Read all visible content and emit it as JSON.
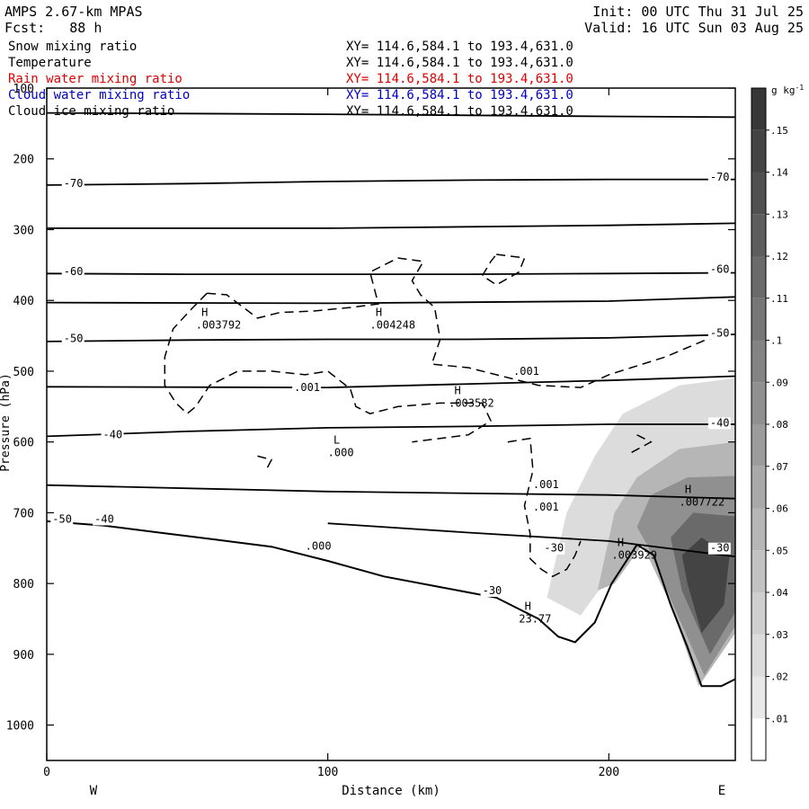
{
  "header": {
    "model": "AMPS 2.67-km MPAS",
    "fcst_label": "Fcst:",
    "fcst_value": "88 h",
    "init": "Init: 00 UTC Thu 31 Jul 25",
    "valid": "Valid: 16 UTC Sun 03 Aug 25"
  },
  "legend": [
    {
      "name": "Snow mixing ratio",
      "xy": "XY= 114.6,584.1 to 193.4,631.0",
      "color": "#000000"
    },
    {
      "name": "Temperature",
      "xy": "XY= 114.6,584.1 to 193.4,631.0",
      "color": "#000000"
    },
    {
      "name": "Rain water mixing ratio",
      "xy": "XY= 114.6,584.1 to 193.4,631.0",
      "color": "#e00000"
    },
    {
      "name": "Cloud water mixing ratio",
      "xy": "XY= 114.6,584.1 to 193.4,631.0",
      "color": "#0000cc"
    },
    {
      "name": "Cloud ice mixing ratio",
      "xy": "XY= 114.6,584.1 to 193.4,631.0",
      "color": "#000000"
    }
  ],
  "chart_data": {
    "type": "contour cross-section",
    "xlabel": "Distance (km)",
    "ylabel": "Pressure (hPa)",
    "xlim": [
      0,
      245
    ],
    "ylim": [
      1050,
      100
    ],
    "x_ticks": [
      0,
      100,
      200
    ],
    "y_ticks": [
      100,
      200,
      300,
      400,
      500,
      600,
      700,
      800,
      900,
      1000
    ],
    "x_end_labels": {
      "left": "W",
      "right": "E"
    },
    "colorbar": {
      "unit": "g kg",
      "unit_exp": "-1",
      "labels": [
        ".01",
        ".02",
        ".03",
        ".04",
        ".05",
        ".06",
        ".07",
        ".08",
        ".09",
        ".1",
        ".11",
        ".12",
        ".13",
        ".14",
        ".15"
      ],
      "levels": [
        0.01,
        0.02,
        0.03,
        0.04,
        0.05,
        0.06,
        0.07,
        0.08,
        0.09,
        0.1,
        0.11,
        0.12,
        0.13,
        0.14,
        0.15
      ]
    },
    "temperature_isotherms": [
      {
        "label": "-70",
        "points": [
          [
            0,
            237
          ],
          [
            50,
            235
          ],
          [
            100,
            232
          ],
          [
            150,
            230
          ],
          [
            200,
            229
          ],
          [
            245,
            229
          ]
        ]
      },
      {
        "label": "-60",
        "points": [
          [
            0,
            362
          ],
          [
            50,
            363
          ],
          [
            100,
            363
          ],
          [
            150,
            363
          ],
          [
            200,
            362
          ],
          [
            245,
            361
          ]
        ]
      },
      {
        "label": "-50",
        "points": [
          [
            0,
            458
          ],
          [
            50,
            456
          ],
          [
            100,
            455
          ],
          [
            150,
            455
          ],
          [
            200,
            453
          ],
          [
            245,
            448
          ]
        ]
      },
      {
        "label": "-40",
        "points": [
          [
            0,
            592
          ],
          [
            50,
            585
          ],
          [
            100,
            580
          ],
          [
            150,
            578
          ],
          [
            200,
            575
          ],
          [
            245,
            575
          ]
        ]
      },
      {
        "label": "-30",
        "points": [
          [
            100,
            715
          ],
          [
            150,
            728
          ],
          [
            200,
            740
          ],
          [
            245,
            762
          ]
        ]
      },
      {
        "label": "",
        "points": [
          [
            0,
            135
          ],
          [
            100,
            137
          ],
          [
            200,
            140
          ],
          [
            245,
            141
          ]
        ]
      },
      {
        "label": "",
        "points": [
          [
            0,
            298
          ],
          [
            100,
            298
          ],
          [
            200,
            294
          ],
          [
            245,
            291
          ]
        ]
      },
      {
        "label": "",
        "points": [
          [
            0,
            403
          ],
          [
            100,
            404
          ],
          [
            200,
            401
          ],
          [
            245,
            395
          ]
        ]
      },
      {
        "label": "",
        "points": [
          [
            0,
            522
          ],
          [
            100,
            523
          ],
          [
            200,
            513
          ],
          [
            245,
            507
          ]
        ]
      },
      {
        "label": "",
        "points": [
          [
            0,
            661
          ],
          [
            100,
            670
          ],
          [
            200,
            675
          ],
          [
            245,
            680
          ]
        ]
      }
    ],
    "inline_labels": [
      {
        "text": "-70",
        "x": 6,
        "p": 240
      },
      {
        "text": "-70",
        "x": 236,
        "p": 231
      },
      {
        "text": "-60",
        "x": 6,
        "p": 364
      },
      {
        "text": "-60",
        "x": 236,
        "p": 361
      },
      {
        "text": "-50",
        "x": 6,
        "p": 459
      },
      {
        "text": "-50",
        "x": 236,
        "p": 451
      },
      {
        "text": "-40",
        "x": 20,
        "p": 595
      },
      {
        "text": "-40",
        "x": 236,
        "p": 578
      },
      {
        "text": "-30",
        "x": 177,
        "p": 755
      },
      {
        "text": "-30",
        "x": 236,
        "p": 755
      },
      {
        "text": "-30",
        "x": 155,
        "p": 815
      },
      {
        "text": "-50",
        "x": 2,
        "p": 714
      },
      {
        "text": "-40",
        "x": 17,
        "p": 714
      },
      {
        "text": ".000",
        "x": 92,
        "p": 752
      },
      {
        "text": ".001",
        "x": 88,
        "p": 528
      },
      {
        "text": ".001",
        "x": 166,
        "p": 505
      },
      {
        "text": ".001",
        "x": 173,
        "p": 665
      },
      {
        "text": ".001",
        "x": 173,
        "p": 697
      }
    ],
    "extrema": [
      {
        "type": "H",
        "value": ".003792",
        "x": 53,
        "p": 440
      },
      {
        "type": "H",
        "value": ".004248",
        "x": 115,
        "p": 440
      },
      {
        "type": "H",
        "value": ".003582",
        "x": 143,
        "p": 550
      },
      {
        "type": "L",
        "value": ".000",
        "x": 100,
        "p": 620
      },
      {
        "type": "H",
        "value": ".007722",
        "x": 225,
        "p": 690
      },
      {
        "type": "H",
        "value": ".003929",
        "x": 201,
        "p": 765
      },
      {
        "type": "H",
        "value": "23.77",
        "x": 168,
        "p": 855
      }
    ],
    "terrain_outline": [
      [
        0,
        712
      ],
      [
        20,
        718
      ],
      [
        40,
        728
      ],
      [
        60,
        738
      ],
      [
        80,
        748
      ],
      [
        100,
        768
      ],
      [
        120,
        790
      ],
      [
        140,
        805
      ],
      [
        160,
        820
      ],
      [
        175,
        850
      ],
      [
        182,
        875
      ],
      [
        188,
        883
      ],
      [
        195,
        855
      ],
      [
        201,
        800
      ],
      [
        210,
        745
      ],
      [
        216,
        760
      ],
      [
        222,
        830
      ],
      [
        228,
        890
      ],
      [
        233,
        945
      ],
      [
        240,
        945
      ],
      [
        245,
        935
      ]
    ],
    "snow_shading": [
      {
        "level": 0.02,
        "points": [
          [
            178,
            820
          ],
          [
            185,
            700
          ],
          [
            195,
            620
          ],
          [
            205,
            560
          ],
          [
            225,
            520
          ],
          [
            245,
            510
          ],
          [
            245,
            870
          ],
          [
            232,
            945
          ],
          [
            222,
            830
          ],
          [
            212,
            745
          ],
          [
            200,
            790
          ],
          [
            190,
            845
          ]
        ]
      },
      {
        "level": 0.05,
        "points": [
          [
            196,
            810
          ],
          [
            202,
            700
          ],
          [
            210,
            650
          ],
          [
            225,
            610
          ],
          [
            245,
            600
          ],
          [
            245,
            870
          ],
          [
            232,
            945
          ],
          [
            222,
            830
          ],
          [
            212,
            745
          ],
          [
            202,
            800
          ]
        ]
      },
      {
        "level": 0.08,
        "points": [
          [
            210,
            720
          ],
          [
            215,
            675
          ],
          [
            228,
            650
          ],
          [
            245,
            648
          ],
          [
            245,
            860
          ],
          [
            234,
            930
          ],
          [
            224,
            840
          ],
          [
            214,
            748
          ]
        ]
      },
      {
        "level": 0.11,
        "points": [
          [
            222,
            735
          ],
          [
            230,
            700
          ],
          [
            245,
            705
          ],
          [
            245,
            840
          ],
          [
            236,
            900
          ],
          [
            226,
            810
          ]
        ]
      },
      {
        "level": 0.14,
        "points": [
          [
            226,
            760
          ],
          [
            233,
            735
          ],
          [
            243,
            760
          ],
          [
            241,
            830
          ],
          [
            233,
            870
          ],
          [
            228,
            800
          ]
        ]
      }
    ],
    "cloud_ice_dashed_contours": [
      {
        "level": 0.001,
        "points": [
          [
            57,
            390
          ],
          [
            64,
            392
          ],
          [
            70,
            410
          ],
          [
            75,
            425
          ],
          [
            83,
            417
          ],
          [
            95,
            415
          ],
          [
            108,
            410
          ],
          [
            118,
            405
          ],
          [
            115,
            360
          ],
          [
            125,
            340
          ],
          [
            134,
            345
          ],
          [
            130,
            372
          ],
          [
            133,
            392
          ],
          [
            138,
            410
          ],
          [
            140,
            455
          ],
          [
            137,
            490
          ],
          [
            150,
            495
          ],
          [
            160,
            505
          ],
          [
            175,
            520
          ],
          [
            190,
            523
          ],
          [
            200,
            505
          ],
          [
            208,
            495
          ],
          [
            220,
            480
          ],
          [
            235,
            455
          ],
          [
            245,
            447
          ]
        ]
      },
      {
        "level": 0.001,
        "points": [
          [
            57,
            390
          ],
          [
            52,
            410
          ],
          [
            45,
            440
          ],
          [
            42,
            480
          ],
          [
            42,
            520
          ],
          [
            46,
            545
          ],
          [
            50,
            560
          ],
          [
            53,
            550
          ],
          [
            58,
            520
          ],
          [
            68,
            500
          ],
          [
            80,
            500
          ],
          [
            92,
            505
          ],
          [
            100,
            500
          ],
          [
            108,
            525
          ],
          [
            110,
            550
          ],
          [
            115,
            560
          ],
          [
            125,
            550
          ],
          [
            140,
            545
          ],
          [
            148,
            545
          ],
          [
            155,
            545
          ],
          [
            158,
            570
          ],
          [
            150,
            590
          ],
          [
            140,
            595
          ],
          [
            130,
            600
          ]
        ]
      },
      {
        "level": 0.001,
        "points": [
          [
            164,
            600
          ],
          [
            172,
            595
          ],
          [
            173,
            640
          ],
          [
            170,
            690
          ],
          [
            172,
            730
          ],
          [
            172,
            765
          ],
          [
            176,
            780
          ],
          [
            180,
            790
          ],
          [
            185,
            780
          ],
          [
            188,
            760
          ],
          [
            190,
            740
          ]
        ]
      },
      {
        "level": 0.001,
        "points": [
          [
            160,
            335
          ],
          [
            170,
            340
          ],
          [
            168,
            360
          ],
          [
            160,
            378
          ],
          [
            155,
            365
          ],
          [
            158,
            345
          ],
          [
            160,
            335
          ]
        ]
      },
      {
        "level": 0.001,
        "points": [
          [
            75,
            620
          ],
          [
            80,
            625
          ],
          [
            78,
            640
          ]
        ]
      },
      {
        "level": 0.001,
        "points": [
          [
            210,
            590
          ],
          [
            215,
            600
          ],
          [
            208,
            615
          ]
        ]
      }
    ]
  }
}
